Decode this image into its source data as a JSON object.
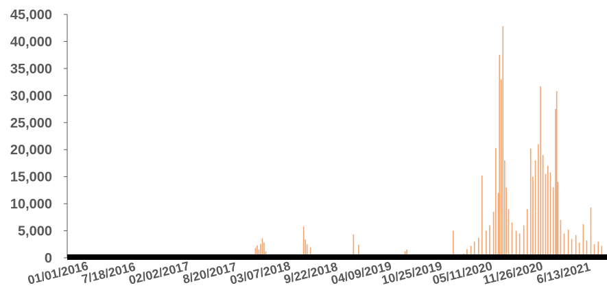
{
  "chart_data": {
    "type": "bar",
    "title": "",
    "xlabel": "",
    "ylabel": "",
    "ylim": [
      0,
      45000
    ],
    "grid": false,
    "legend": "none",
    "bar_color": "#F4A46E",
    "baseline_color": "#000000",
    "x_range": [
      "2016-01-01",
      "2021-12-31"
    ],
    "x_tick_labels": [
      "01/01/2016",
      "7/18/2016",
      "02/02/2017",
      "8/20/2017",
      "03/07/2018",
      "9/22/2018",
      "04/09/2019",
      "10/25/2019",
      "05/11/2020",
      "11/26/2020",
      "6/13/2021"
    ],
    "y_tick_labels": [
      "0",
      "5,000",
      "10,000",
      "15,000",
      "20,000",
      "25,000",
      "30,000",
      "35,000",
      "40,000",
      "45,000"
    ],
    "y_ticks": [
      0,
      5000,
      10000,
      15000,
      20000,
      25000,
      30000,
      35000,
      40000,
      45000
    ],
    "series": [
      {
        "points": [
          [
            "2018-02-05",
            1800
          ],
          [
            "2018-02-12",
            2300
          ],
          [
            "2018-02-19",
            1500
          ],
          [
            "2018-02-26",
            2600
          ],
          [
            "2018-03-05",
            3600
          ],
          [
            "2018-03-12",
            2800
          ],
          [
            "2018-03-19",
            1200
          ],
          [
            "2018-08-20",
            5800
          ],
          [
            "2018-08-27",
            3400
          ],
          [
            "2018-09-03",
            2500
          ],
          [
            "2018-09-17",
            1900
          ],
          [
            "2019-03-11",
            4300
          ],
          [
            "2019-04-01",
            2400
          ],
          [
            "2019-10-07",
            1200
          ],
          [
            "2019-10-14",
            1500
          ],
          [
            "2020-04-20",
            5000
          ],
          [
            "2020-06-01",
            800
          ],
          [
            "2020-06-15",
            1600
          ],
          [
            "2020-07-01",
            2200
          ],
          [
            "2020-07-15",
            3000
          ],
          [
            "2020-08-01",
            3700
          ],
          [
            "2020-08-15",
            15200
          ],
          [
            "2020-09-01",
            5000
          ],
          [
            "2020-09-15",
            6000
          ],
          [
            "2020-10-01",
            8500
          ],
          [
            "2020-10-10",
            20300
          ],
          [
            "2020-10-20",
            12000
          ],
          [
            "2020-10-25",
            37500
          ],
          [
            "2020-11-01",
            33000
          ],
          [
            "2020-11-08",
            42800
          ],
          [
            "2020-11-15",
            18000
          ],
          [
            "2020-11-22",
            13000
          ],
          [
            "2020-12-01",
            9000
          ],
          [
            "2020-12-15",
            6500
          ],
          [
            "2021-01-01",
            5000
          ],
          [
            "2021-01-15",
            4500
          ],
          [
            "2021-02-01",
            6000
          ],
          [
            "2021-02-15",
            9000
          ],
          [
            "2021-03-01",
            20200
          ],
          [
            "2021-03-10",
            15000
          ],
          [
            "2021-03-20",
            18000
          ],
          [
            "2021-04-01",
            21000
          ],
          [
            "2021-04-10",
            31700
          ],
          [
            "2021-04-20",
            19000
          ],
          [
            "2021-05-01",
            15500
          ],
          [
            "2021-05-10",
            17000
          ],
          [
            "2021-05-20",
            15800
          ],
          [
            "2021-06-01",
            13000
          ],
          [
            "2021-06-10",
            27500
          ],
          [
            "2021-06-15",
            30800
          ],
          [
            "2021-06-20",
            14000
          ],
          [
            "2021-07-01",
            7000
          ],
          [
            "2021-07-15",
            4500
          ],
          [
            "2021-08-01",
            5200
          ],
          [
            "2021-08-15",
            3500
          ],
          [
            "2021-09-01",
            4200
          ],
          [
            "2021-09-15",
            2800
          ],
          [
            "2021-10-01",
            6200
          ],
          [
            "2021-10-15",
            3200
          ],
          [
            "2021-11-01",
            9300
          ],
          [
            "2021-11-15",
            2500
          ],
          [
            "2021-12-01",
            3000
          ],
          [
            "2021-12-15",
            2200
          ]
        ]
      }
    ]
  }
}
